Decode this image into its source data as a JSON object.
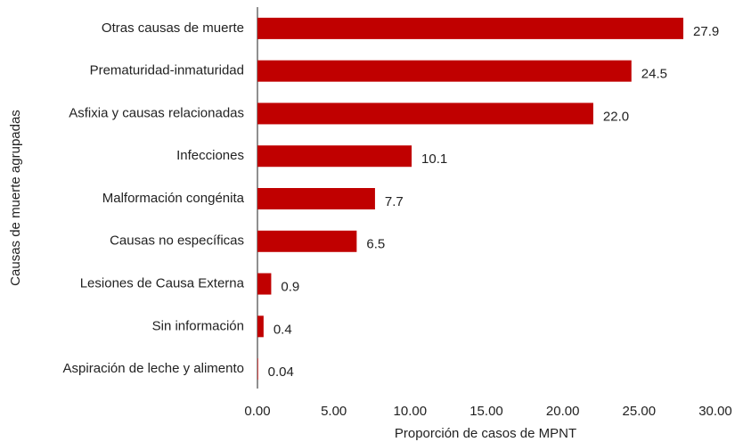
{
  "chart_data": {
    "type": "hbar",
    "x_label": "Proporción de casos de MPNT",
    "y_label": "Causas de muerte agrupadas",
    "categories": [
      "Otras causas de muerte",
      "Prematuridad-inmaturidad",
      "Asfixia y causas relacionadas",
      "Infecciones",
      "Malformación congénita",
      "Causas no específicas",
      "Lesiones de Causa Externa",
      "Sin información",
      "Aspiración de leche y alimento"
    ],
    "values": [
      27.9,
      24.5,
      22.0,
      10.1,
      7.7,
      6.5,
      0.9,
      0.4,
      0.04
    ],
    "value_labels": [
      "27.9",
      "24.5",
      "22.0",
      "10.1",
      "7.7",
      "6.5",
      "0.9",
      "0.4",
      "0.04"
    ],
    "color": "#c00000",
    "xlim": [
      0,
      30
    ],
    "xticks": [
      {
        "value": 0,
        "label": "0.00"
      },
      {
        "value": 5,
        "label": "5.00"
      },
      {
        "value": 10,
        "label": "10.00"
      },
      {
        "value": 15,
        "label": "15.00"
      },
      {
        "value": 20,
        "label": "20.00"
      },
      {
        "value": 25,
        "label": "25.00"
      },
      {
        "value": 30,
        "label": "30.00"
      }
    ],
    "grid": false
  }
}
